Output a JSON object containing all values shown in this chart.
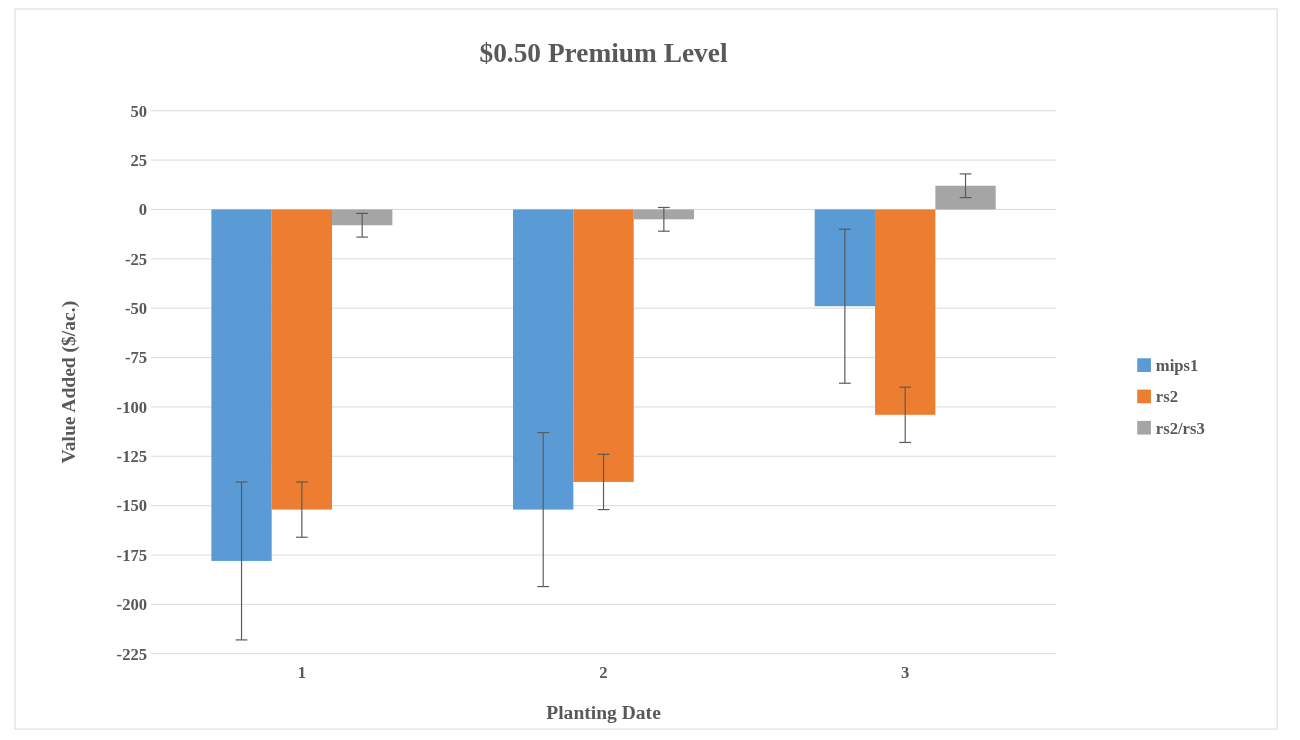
{
  "chart_data": {
    "type": "bar",
    "title": "$0.50 Premium Level",
    "xlabel": "Planting Date",
    "ylabel": "Value Added ($/ac.)",
    "categories": [
      "1",
      "2",
      "3"
    ],
    "series": [
      {
        "name": "mips1",
        "color": "#5b9bd5",
        "values": [
          -178,
          -152,
          -49
        ],
        "errors": [
          40,
          39,
          39
        ]
      },
      {
        "name": "rs2",
        "color": "#ed7d31",
        "values": [
          -152,
          -138,
          -104
        ],
        "errors": [
          14,
          14,
          14
        ]
      },
      {
        "name": "rs2/rs3",
        "color": "#a5a5a5",
        "values": [
          -8,
          -5,
          12
        ],
        "errors": [
          6,
          6,
          6
        ]
      }
    ],
    "ylim": [
      -225,
      50
    ],
    "yticks": [
      -225,
      -200,
      -175,
      -150,
      -125,
      -100,
      -75,
      -50,
      -25,
      0,
      25,
      50
    ],
    "grid": "y",
    "legend": "right"
  }
}
